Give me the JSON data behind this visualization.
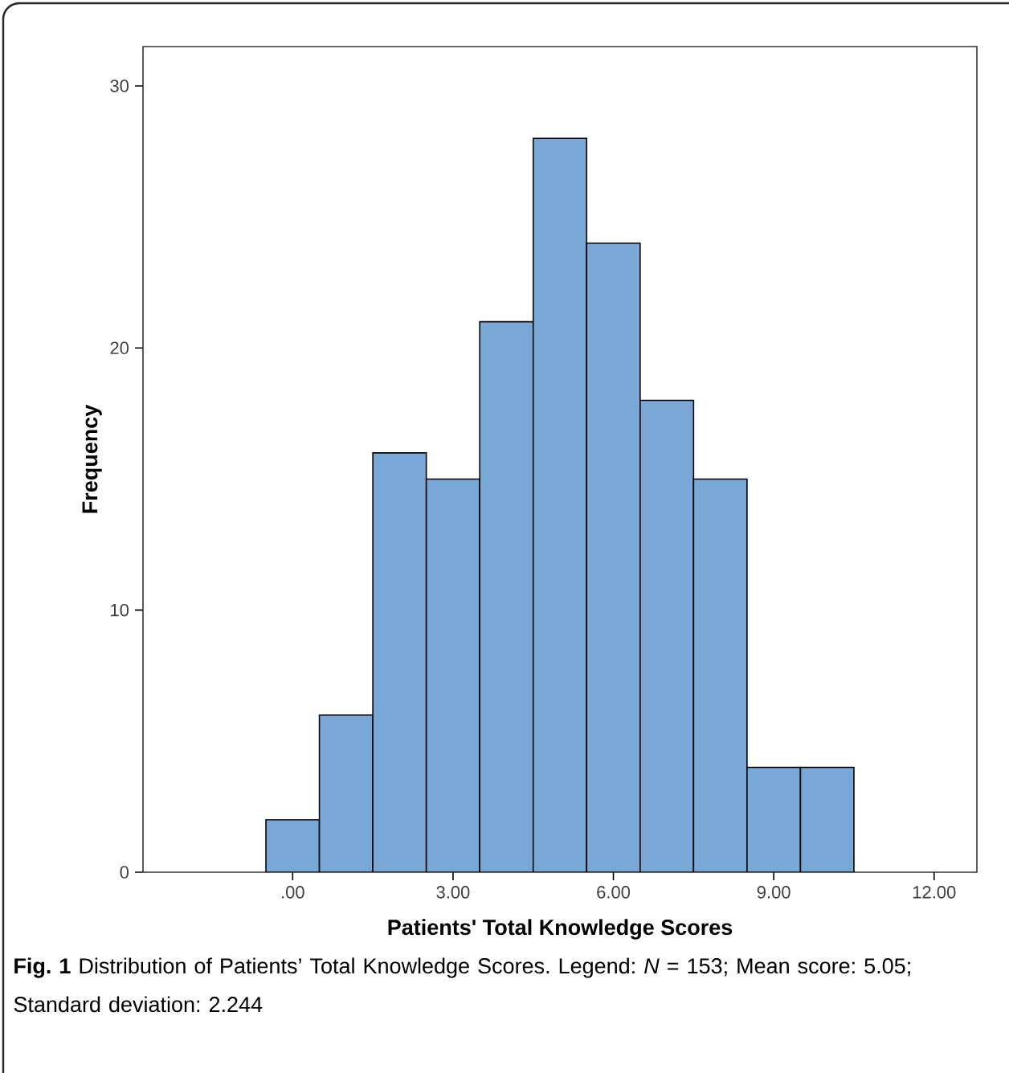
{
  "chart_data": {
    "type": "histogram",
    "xlabel": "Patients' Total Knowledge Scores",
    "ylabel": "Frequency",
    "bins": [
      -0.5,
      0.5,
      1.5,
      2.5,
      3.5,
      4.5,
      5.5,
      6.5,
      7.5,
      8.5,
      9.5,
      10.5
    ],
    "values": [
      2,
      6,
      16,
      15,
      21,
      28,
      24,
      18,
      15,
      4,
      4
    ],
    "color": "#7aa8d6",
    "xlim": [
      -2.8,
      12.8
    ],
    "ylim": [
      0,
      31.5
    ],
    "xticks": [
      {
        "value": 0,
        "label": ".00"
      },
      {
        "value": 3,
        "label": "3.00"
      },
      {
        "value": 6,
        "label": "6.00"
      },
      {
        "value": 9,
        "label": "9.00"
      },
      {
        "value": 12,
        "label": "12.00"
      }
    ],
    "yticks": [
      0,
      10,
      20,
      30
    ],
    "annotations": [
      "**Fig. 1** Distribution of Patients’ Total Knowledge Scores. Legend: *N* = 153; Mean score: 5.05; Standard deviation: 2.244"
    ]
  }
}
